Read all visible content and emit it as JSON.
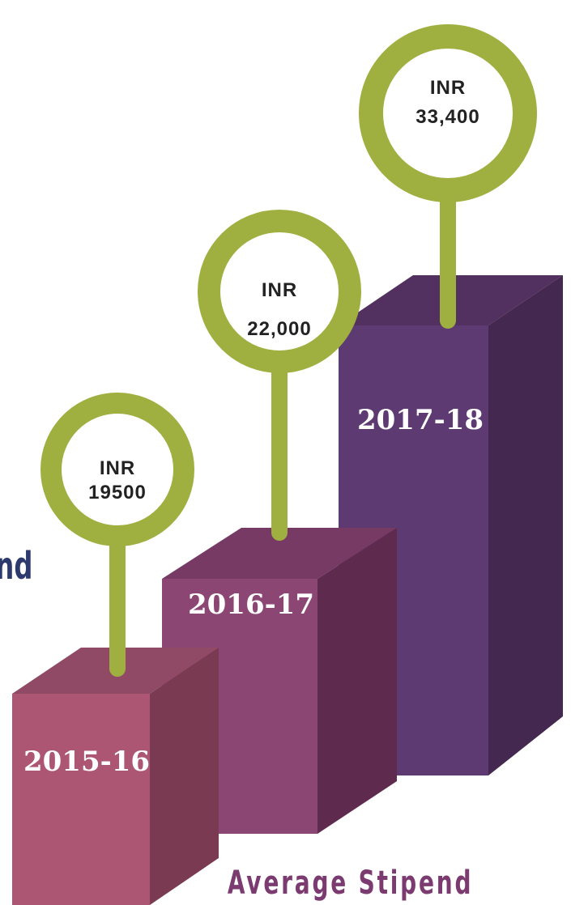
{
  "side_text": "nd",
  "caption": "Average Stipend",
  "bars": [
    {
      "year": "2015-16",
      "amount_lines": [
        "INR",
        "19500"
      ]
    },
    {
      "year": "2016-17",
      "amount_lines": [
        "INR",
        "22,000"
      ]
    },
    {
      "year": "2017-18",
      "amount_lines": [
        "INR",
        "33,400"
      ]
    }
  ]
}
